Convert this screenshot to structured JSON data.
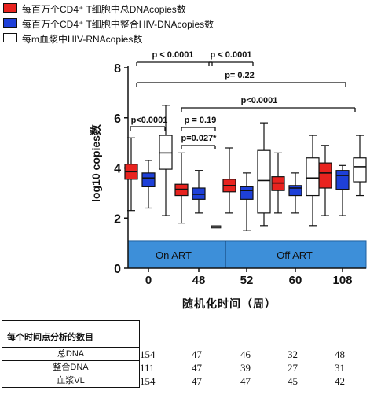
{
  "legend": [
    {
      "name": "每百万个CD4⁺ T细胞中总DNAcopies数",
      "color": "#e8231f",
      "fill": true
    },
    {
      "name": "每百万个CD4⁺ T细胞中整合HIV-DNAcopies数",
      "color": "#1e40d8",
      "fill": true
    },
    {
      "name": "每m血浆中HIV-RNAcopies数",
      "color": "#ffffff",
      "fill": false
    }
  ],
  "chart_data": {
    "type": "box",
    "ylabel": "log10 copies数",
    "xlabel": "随机化时间（周）",
    "ylim": [
      0,
      8
    ],
    "yticks": [
      0,
      2,
      4,
      6,
      8
    ],
    "categories": [
      "0",
      "48",
      "52",
      "60",
      "108"
    ],
    "phases": [
      {
        "label": "On ART",
        "groups": [
          "0",
          "48"
        ]
      },
      {
        "label": "Off ART",
        "groups": [
          "52",
          "60",
          "108"
        ]
      }
    ],
    "series": [
      {
        "name": "总DNA",
        "color": "#e8231f",
        "boxes": [
          {
            "group": "0",
            "min": 2.3,
            "q1": 3.55,
            "median": 3.85,
            "q3": 4.15,
            "max": 5.2
          },
          {
            "group": "48",
            "min": 1.8,
            "q1": 2.9,
            "median": 3.15,
            "q3": 3.35,
            "max": 4.6
          },
          {
            "group": "52",
            "min": 2.2,
            "q1": 3.05,
            "median": 3.3,
            "q3": 3.55,
            "max": 4.8
          },
          {
            "group": "60",
            "min": 2.2,
            "q1": 3.1,
            "median": 3.4,
            "q3": 3.65,
            "max": 4.6
          },
          {
            "group": "108",
            "min": 2.1,
            "q1": 3.2,
            "median": 3.8,
            "q3": 4.2,
            "max": 4.9
          }
        ]
      },
      {
        "name": "整合DNA",
        "color": "#1e40d8",
        "boxes": [
          {
            "group": "0",
            "min": 2.4,
            "q1": 3.25,
            "median": 3.6,
            "q3": 3.8,
            "max": 4.3
          },
          {
            "group": "48",
            "min": 2.2,
            "q1": 2.75,
            "median": 2.95,
            "q3": 3.2,
            "max": 3.9
          },
          {
            "group": "52",
            "min": 1.5,
            "q1": 2.75,
            "median": 3.1,
            "q3": 3.25,
            "max": 3.8
          },
          {
            "group": "60",
            "min": 2.2,
            "q1": 2.9,
            "median": 3.2,
            "q3": 3.3,
            "max": 3.8
          },
          {
            "group": "108",
            "min": 2.1,
            "q1": 3.15,
            "median": 3.7,
            "q3": 3.9,
            "max": 4.1
          }
        ]
      },
      {
        "name": "血浆VL",
        "color": "#ffffff",
        "boxes": [
          {
            "group": "0",
            "min": 2.1,
            "q1": 3.95,
            "median": 4.6,
            "q3": 5.3,
            "max": 6.5
          },
          {
            "group": "48",
            "median": 1.65
          },
          {
            "group": "52",
            "min": 1.7,
            "q1": 2.2,
            "median": 3.5,
            "q3": 4.7,
            "max": 5.8
          },
          {
            "group": "60",
            "min": 1.7,
            "q1": 2.9,
            "median": 3.6,
            "q3": 4.4,
            "max": 5.3
          },
          {
            "group": "108",
            "min": 2.9,
            "q1": 3.45,
            "median": 4.05,
            "q3": 4.4,
            "max": 5.3
          }
        ]
      }
    ],
    "annotations": [
      {
        "text": "p < 0.0001",
        "from": "0",
        "to": "48",
        "y": 7.4
      },
      {
        "text": "p < 0.0001",
        "from": "52",
        "to": "60",
        "y": 7.4
      },
      {
        "text": "p= 0.22",
        "from": "0",
        "to": "108",
        "y": 7.0
      },
      {
        "text": "p<0.0001",
        "from": "0",
        "to": "0",
        "y": 5.8
      },
      {
        "text": "p<0.0001",
        "from": "48",
        "to": "108",
        "y": 6.35
      },
      {
        "text": "p = 0.19",
        "from": "48",
        "to": "48",
        "y": 5.75
      },
      {
        "text": "p=0.027*",
        "from": "48",
        "to": "48",
        "y": 5.0
      }
    ]
  },
  "table": {
    "title": "每个时间点分析的数目",
    "rows": [
      {
        "label": "总DNA",
        "values": [
          "154",
          "47",
          "46",
          "32",
          "48"
        ]
      },
      {
        "label": "整合DNA",
        "values": [
          "111",
          "47",
          "39",
          "27",
          "31"
        ]
      },
      {
        "label": "血浆VL",
        "values": [
          "154",
          "47",
          "47",
          "45",
          "42"
        ]
      }
    ]
  }
}
